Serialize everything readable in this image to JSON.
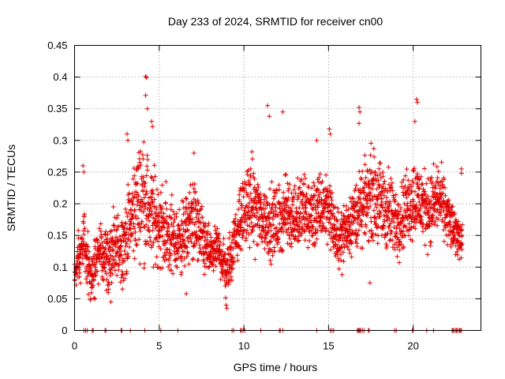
{
  "chart_data": {
    "type": "scatter",
    "title": "Day 233 of 2024, SRMTID for receiver cn00",
    "xlabel": "GPS time / hours",
    "ylabel": "SRMTID / TECUs",
    "xlim": [
      0,
      24
    ],
    "ylim": [
      0,
      0.45
    ],
    "x_ticks": [
      0,
      5,
      10,
      15,
      20
    ],
    "x_tick_labels": [
      "0",
      "5",
      "10",
      "15",
      "20"
    ],
    "y_ticks": [
      0,
      0.05,
      0.1,
      0.15,
      0.2,
      0.25,
      0.3,
      0.35,
      0.4,
      0.45
    ],
    "y_tick_labels": [
      "0",
      "0.05",
      "0.1",
      "0.15",
      "0.2",
      "0.25",
      "0.3",
      "0.35",
      "0.4",
      "0.45"
    ],
    "grid": true,
    "marker": "+",
    "series_color": "#e00000",
    "envelope": {
      "description": "approximate central level of the scattered SRMTID values versus time",
      "x": [
        0.0,
        0.5,
        1.0,
        1.5,
        2.0,
        2.5,
        3.0,
        3.5,
        4.0,
        4.5,
        5.0,
        5.5,
        6.0,
        6.5,
        7.0,
        7.5,
        8.0,
        8.5,
        9.0,
        9.5,
        10.0,
        10.5,
        11.0,
        11.5,
        12.0,
        12.5,
        13.0,
        13.5,
        14.0,
        14.5,
        15.0,
        15.5,
        16.0,
        16.5,
        17.0,
        17.5,
        18.0,
        18.5,
        19.0,
        19.5,
        20.0,
        20.5,
        21.0,
        21.5,
        22.0,
        22.5
      ],
      "y": [
        0.09,
        0.14,
        0.08,
        0.13,
        0.11,
        0.13,
        0.14,
        0.19,
        0.22,
        0.18,
        0.17,
        0.15,
        0.14,
        0.15,
        0.18,
        0.14,
        0.12,
        0.13,
        0.09,
        0.15,
        0.19,
        0.2,
        0.18,
        0.17,
        0.17,
        0.19,
        0.18,
        0.19,
        0.18,
        0.19,
        0.2,
        0.14,
        0.16,
        0.18,
        0.19,
        0.22,
        0.2,
        0.19,
        0.17,
        0.19,
        0.21,
        0.2,
        0.19,
        0.21,
        0.18,
        0.15
      ],
      "spread": [
        0.02,
        0.06,
        0.03,
        0.04,
        0.05,
        0.05,
        0.05,
        0.07,
        0.08,
        0.07,
        0.06,
        0.06,
        0.05,
        0.05,
        0.06,
        0.05,
        0.03,
        0.03,
        0.04,
        0.04,
        0.05,
        0.06,
        0.05,
        0.05,
        0.05,
        0.05,
        0.05,
        0.05,
        0.05,
        0.05,
        0.05,
        0.04,
        0.04,
        0.05,
        0.05,
        0.06,
        0.06,
        0.06,
        0.05,
        0.05,
        0.06,
        0.05,
        0.05,
        0.05,
        0.04,
        0.03
      ]
    },
    "outliers": [
      {
        "x": 4.2,
        "y": 0.401
      },
      {
        "x": 4.25,
        "y": 0.399
      },
      {
        "x": 4.2,
        "y": 0.371
      },
      {
        "x": 4.3,
        "y": 0.35
      },
      {
        "x": 4.55,
        "y": 0.33
      },
      {
        "x": 4.6,
        "y": 0.322
      },
      {
        "x": 3.1,
        "y": 0.31
      },
      {
        "x": 3.15,
        "y": 0.3
      },
      {
        "x": 11.4,
        "y": 0.355
      },
      {
        "x": 11.5,
        "y": 0.338
      },
      {
        "x": 12.3,
        "y": 0.345
      },
      {
        "x": 16.8,
        "y": 0.352
      },
      {
        "x": 16.85,
        "y": 0.345
      },
      {
        "x": 16.8,
        "y": 0.327
      },
      {
        "x": 20.2,
        "y": 0.365
      },
      {
        "x": 20.25,
        "y": 0.36
      },
      {
        "x": 20.1,
        "y": 0.33
      },
      {
        "x": 15.05,
        "y": 0.318
      },
      {
        "x": 15.1,
        "y": 0.31
      },
      {
        "x": 14.3,
        "y": 0.3
      },
      {
        "x": 7.05,
        "y": 0.28
      },
      {
        "x": 22.85,
        "y": 0.255
      },
      {
        "x": 22.85,
        "y": 0.248
      },
      {
        "x": 8.95,
        "y": 0.04
      },
      {
        "x": 9.0,
        "y": 0.035
      },
      {
        "x": 1.2,
        "y": 0.05
      },
      {
        "x": 2.15,
        "y": 0.045
      },
      {
        "x": 17.45,
        "y": 0.075
      },
      {
        "x": 15.8,
        "y": 0.088
      },
      {
        "x": 6.6,
        "y": 0.058
      },
      {
        "x": 0.5,
        "y": 0.26
      },
      {
        "x": 0.55,
        "y": 0.25
      }
    ],
    "zero_x": [
      0.55,
      0.65,
      0.75,
      1.05,
      1.1,
      1.8,
      1.85,
      2.75,
      2.8,
      3.3,
      4.15,
      5.1,
      6.1,
      9.3,
      9.4,
      9.8,
      9.85,
      9.95,
      10.05,
      11.0,
      12.1,
      12.15,
      12.3,
      14.3,
      15.1,
      15.2,
      15.3,
      16.7,
      16.75,
      16.8,
      16.85,
      16.9,
      17.0,
      17.1,
      17.35,
      17.4,
      18.9,
      19.0,
      19.95,
      20.0,
      20.8,
      21.2,
      22.3,
      22.35,
      22.4,
      22.5,
      22.55,
      22.6,
      22.7,
      22.75,
      22.8,
      22.85
    ]
  }
}
